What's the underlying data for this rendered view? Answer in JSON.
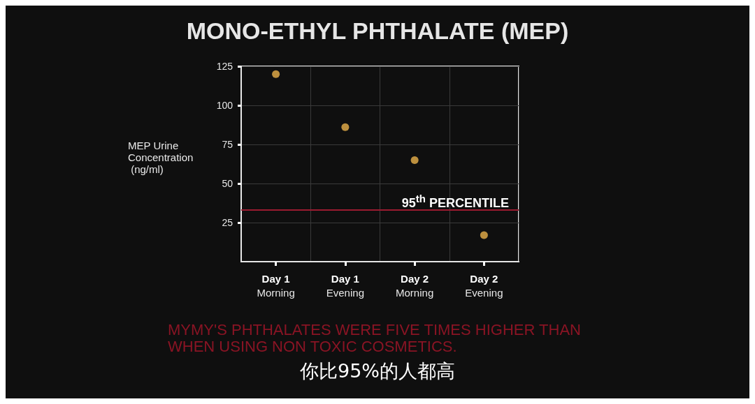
{
  "chart_data": {
    "type": "scatter",
    "title": "MONO-ETHYL PHTHALATE (MEP)",
    "ylabel": "MEP Urine Concentration (ng/ml)",
    "categories": [
      "Day 1\nMorning",
      "Day 1\nEvening",
      "Day 2\nMorning",
      "Day 2\nEvening"
    ],
    "values": [
      120,
      86,
      65,
      17
    ],
    "color": "#e8b04a",
    "ylim": [
      0,
      125
    ],
    "yticks": [
      25,
      50,
      75,
      100,
      125
    ],
    "grid": true,
    "marker": "circle",
    "ref_lines": [
      {
        "axis": "y",
        "value": 33,
        "label": "95$^{th}$ PERCENTILE",
        "color": "#9b1b30"
      }
    ],
    "annotations": [
      "MYMY'S PHTHALATES WERE FIVE TIMES HIGHER THAN WHEN USING NON TOXIC COSMETICS.",
      "你比95%的人都高"
    ]
  }
}
